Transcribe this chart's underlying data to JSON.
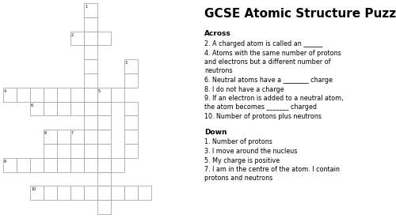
{
  "title": "GCSE Atomic Structure Puzzle",
  "title_fontsize": 11,
  "clue_fontsize": 5.8,
  "header_fontsize": 6.5,
  "background_color": "#ffffff",
  "cell_color": "#ffffff",
  "border_color": "#999999",
  "across_header": "Across",
  "down_header": "Down",
  "across_clues": [
    [
      "2. A charged atom is called an ______"
    ],
    [
      "4. Atoms with the same number of protons",
      "and electrons but a different number of",
      "neutrons"
    ],
    [
      "6. Neutral atoms have a ________ charge"
    ],
    [
      "8. I do not have a charge"
    ],
    [
      "9. If an electron is added to a neutral atom,",
      "the atom becomes _______ charged"
    ],
    [
      "10. Number of protons plus neutrons"
    ]
  ],
  "down_clues": [
    [
      "1. Number of protons"
    ],
    [
      "3. I move around the nucleus"
    ],
    [
      "5. My charge is positive"
    ],
    [
      "7. I am in the centre of the atom. I contain",
      "protons and neutrons"
    ]
  ],
  "grid_cells": [
    {
      "row": 0,
      "col": 6,
      "number": "1"
    },
    {
      "row": 1,
      "col": 6,
      "number": ""
    },
    {
      "row": 2,
      "col": 5,
      "number": "2"
    },
    {
      "row": 2,
      "col": 6,
      "number": ""
    },
    {
      "row": 2,
      "col": 7,
      "number": ""
    },
    {
      "row": 3,
      "col": 6,
      "number": ""
    },
    {
      "row": 4,
      "col": 6,
      "number": ""
    },
    {
      "row": 4,
      "col": 9,
      "number": "3"
    },
    {
      "row": 5,
      "col": 6,
      "number": ""
    },
    {
      "row": 5,
      "col": 9,
      "number": ""
    },
    {
      "row": 6,
      "col": 0,
      "number": "4"
    },
    {
      "row": 6,
      "col": 1,
      "number": ""
    },
    {
      "row": 6,
      "col": 2,
      "number": ""
    },
    {
      "row": 6,
      "col": 3,
      "number": ""
    },
    {
      "row": 6,
      "col": 4,
      "number": ""
    },
    {
      "row": 6,
      "col": 5,
      "number": ""
    },
    {
      "row": 6,
      "col": 6,
      "number": ""
    },
    {
      "row": 6,
      "col": 7,
      "number": "5"
    },
    {
      "row": 6,
      "col": 8,
      "number": ""
    },
    {
      "row": 7,
      "col": 2,
      "number": "6"
    },
    {
      "row": 7,
      "col": 3,
      "number": ""
    },
    {
      "row": 7,
      "col": 4,
      "number": ""
    },
    {
      "row": 7,
      "col": 5,
      "number": ""
    },
    {
      "row": 7,
      "col": 6,
      "number": ""
    },
    {
      "row": 7,
      "col": 7,
      "number": ""
    },
    {
      "row": 7,
      "col": 9,
      "number": ""
    },
    {
      "row": 8,
      "col": 6,
      "number": ""
    },
    {
      "row": 8,
      "col": 7,
      "number": ""
    },
    {
      "row": 8,
      "col": 9,
      "number": ""
    },
    {
      "row": 9,
      "col": 5,
      "number": "7"
    },
    {
      "row": 9,
      "col": 6,
      "number": ""
    },
    {
      "row": 9,
      "col": 7,
      "number": ""
    },
    {
      "row": 9,
      "col": 9,
      "number": ""
    },
    {
      "row": 9,
      "col": 3,
      "number": "8"
    },
    {
      "row": 9,
      "col": 4,
      "number": ""
    },
    {
      "row": 10,
      "col": 3,
      "number": ""
    },
    {
      "row": 10,
      "col": 5,
      "number": ""
    },
    {
      "row": 10,
      "col": 6,
      "number": ""
    },
    {
      "row": 10,
      "col": 7,
      "number": ""
    },
    {
      "row": 10,
      "col": 9,
      "number": ""
    },
    {
      "row": 11,
      "col": 0,
      "number": "9"
    },
    {
      "row": 11,
      "col": 1,
      "number": ""
    },
    {
      "row": 11,
      "col": 2,
      "number": ""
    },
    {
      "row": 11,
      "col": 3,
      "number": ""
    },
    {
      "row": 11,
      "col": 4,
      "number": ""
    },
    {
      "row": 11,
      "col": 5,
      "number": ""
    },
    {
      "row": 11,
      "col": 6,
      "number": ""
    },
    {
      "row": 11,
      "col": 7,
      "number": ""
    },
    {
      "row": 11,
      "col": 8,
      "number": ""
    },
    {
      "row": 12,
      "col": 7,
      "number": ""
    },
    {
      "row": 13,
      "col": 2,
      "number": "10"
    },
    {
      "row": 13,
      "col": 3,
      "number": ""
    },
    {
      "row": 13,
      "col": 4,
      "number": ""
    },
    {
      "row": 13,
      "col": 5,
      "number": ""
    },
    {
      "row": 13,
      "col": 6,
      "number": ""
    },
    {
      "row": 13,
      "col": 7,
      "number": ""
    },
    {
      "row": 13,
      "col": 8,
      "number": ""
    },
    {
      "row": 13,
      "col": 9,
      "number": ""
    },
    {
      "row": 13,
      "col": 10,
      "number": ""
    },
    {
      "row": 14,
      "col": 7,
      "number": ""
    }
  ]
}
